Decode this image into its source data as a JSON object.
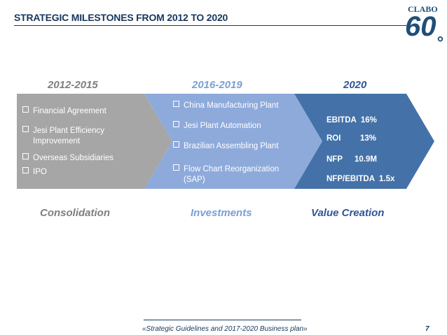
{
  "title": "STRATEGIC MILESTONES FROM 2012 TO 2020",
  "logo": {
    "brand": "CLABO",
    "number": "60",
    "suffix": "°"
  },
  "colors": {
    "navy": "#17375e",
    "grey": "#a6a6a6",
    "light_blue": "#8eaadb",
    "dark_blue": "#4472a8",
    "header_grey": "#7f7f7f",
    "header_blue": "#7b9fd3",
    "header_dark": "#2f5597"
  },
  "periods": [
    {
      "label": "2012-2015",
      "phase": "Consolidation",
      "items": [
        {
          "text": "Financial Agreement"
        },
        {
          "text": "Jesi Plant Efficiency",
          "cont": "Improvement"
        },
        {
          "text": "Overseas Subsidiaries"
        },
        {
          "text": "IPO"
        }
      ]
    },
    {
      "label": "2016-2019",
      "phase": "Investments",
      "items": [
        {
          "text": "China Manufacturing Plant"
        },
        {
          "text": "Jesi Plant Automation"
        },
        {
          "text": "Brazilian Assembling  Plant"
        },
        {
          "text": "Flow Chart Reorganization",
          "cont": "(SAP)"
        }
      ]
    },
    {
      "label": "2020",
      "phase": "Value Creation",
      "kpis": [
        {
          "name": "EBITDA",
          "value": "16%"
        },
        {
          "name": "ROI",
          "value": "13%"
        },
        {
          "name": "NFP",
          "value": "10.9M"
        },
        {
          "name": "NFP/EBITDA",
          "value": "1.5x"
        }
      ]
    }
  ],
  "footer": {
    "text": "«Strategic Guidelines and 2017-2020 Business plan»",
    "page": "7"
  }
}
